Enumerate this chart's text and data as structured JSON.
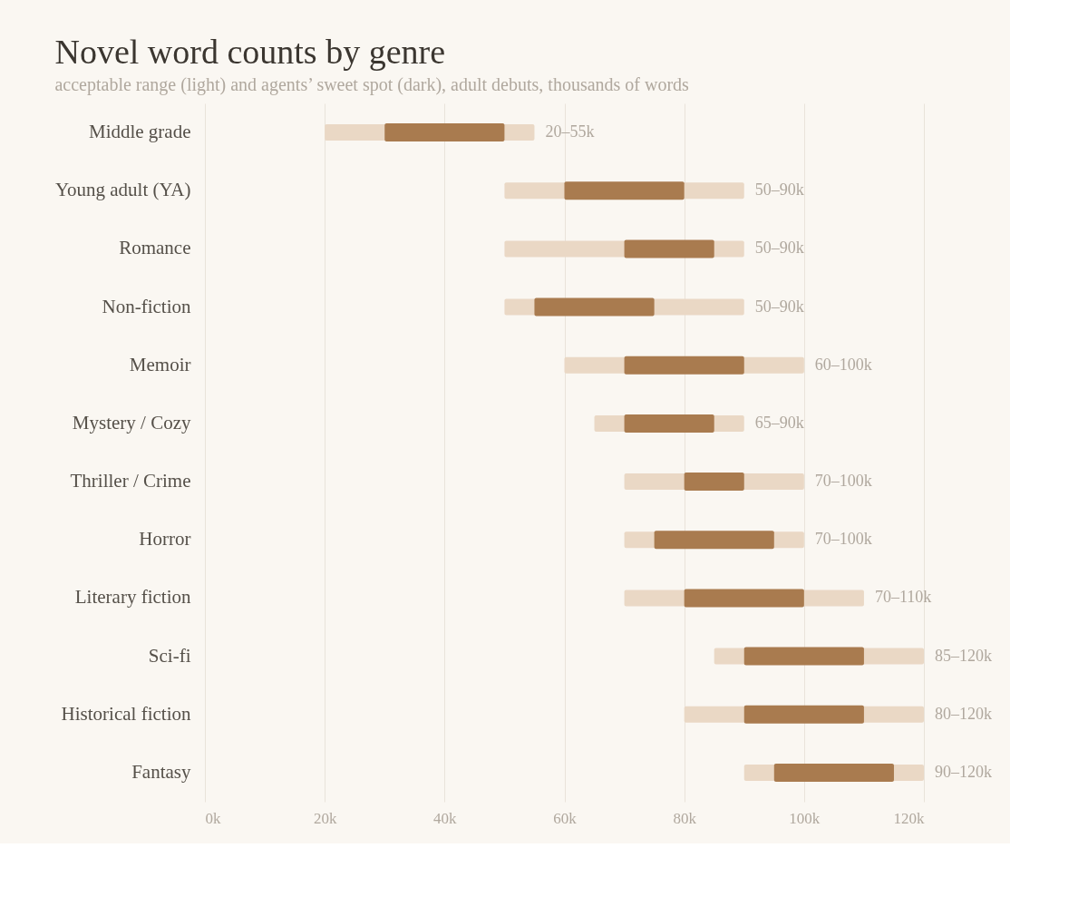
{
  "chart_data": {
    "type": "bar",
    "orientation": "horizontal",
    "title": "Novel word counts by genre",
    "subtitle": "acceptable range (light) and agents’ sweet spot (dark), adult debuts, thousands of words",
    "categories": [
      "Middle grade",
      "Young adult (YA)",
      "Romance",
      "Non-fiction",
      "Memoir",
      "Mystery / Cozy",
      "Thriller / Crime",
      "Horror",
      "Literary fiction",
      "Sci-fi",
      "Historical fiction",
      "Fantasy"
    ],
    "series": [
      {
        "color": "#ead8c5",
        "base": [
          20,
          50,
          50,
          50,
          60,
          65,
          70,
          70,
          70,
          85,
          80,
          90
        ],
        "values": [
          35,
          40,
          40,
          40,
          40,
          25,
          30,
          30,
          40,
          35,
          40,
          30
        ],
        "value_labels": [
          "20–55k",
          "50–90k",
          "50–90k",
          "50–90k",
          "60–100k",
          "65–90k",
          "70–100k",
          "70–100k",
          "70–110k",
          "85–120k",
          "80–120k",
          "90–120k"
        ]
      },
      {
        "color": "#a97b4f",
        "base": [
          30,
          60,
          70,
          55,
          70,
          70,
          80,
          75,
          80,
          90,
          90,
          95
        ],
        "values": [
          20,
          20,
          15,
          20,
          20,
          15,
          10,
          20,
          20,
          20,
          20,
          20
        ]
      }
    ],
    "xlim": [
      0,
      120
    ],
    "xticks": [
      {
        "value": 0,
        "label": "0k"
      },
      {
        "value": 20,
        "label": "20k"
      },
      {
        "value": 40,
        "label": "40k"
      },
      {
        "value": 60,
        "label": "60k"
      },
      {
        "value": 80,
        "label": "80k"
      },
      {
        "value": 100,
        "label": "100k"
      },
      {
        "value": 120,
        "label": "120k"
      }
    ],
    "grid": "x"
  }
}
